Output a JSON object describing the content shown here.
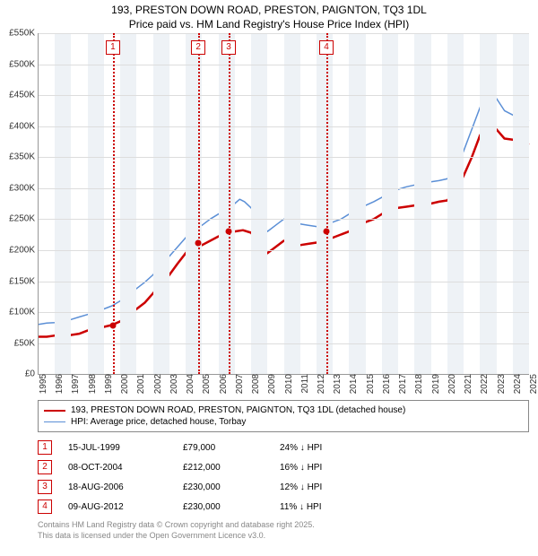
{
  "title_line1": "193, PRESTON DOWN ROAD, PRESTON, PAIGNTON, TQ3 1DL",
  "title_line2": "Price paid vs. HM Land Registry's House Price Index (HPI)",
  "chart": {
    "type": "line",
    "background_color": "#ffffff",
    "band_color": "#eef2f6",
    "grid_color": "#dddddd",
    "axis_color": "#999999",
    "marker_color": "#cc0000",
    "ylim": [
      0,
      550
    ],
    "ytick_step": 50,
    "y_unit_prefix": "£",
    "y_unit_suffix": "K",
    "x_years": [
      1995,
      1996,
      1997,
      1998,
      1999,
      2000,
      2001,
      2002,
      2003,
      2004,
      2005,
      2006,
      2007,
      2008,
      2009,
      2010,
      2011,
      2012,
      2013,
      2014,
      2015,
      2016,
      2017,
      2018,
      2019,
      2020,
      2021,
      2022,
      2023,
      2024,
      2025
    ],
    "series": [
      {
        "id": "property",
        "label": "193, PRESTON DOWN ROAD, PRESTON, PAIGNTON, TQ3 1DL (detached house)",
        "color": "#cc0000",
        "line_width": 2.5,
        "points": [
          [
            1995.0,
            60
          ],
          [
            1995.5,
            60
          ],
          [
            1996.0,
            62
          ],
          [
            1996.5,
            61
          ],
          [
            1997.0,
            63
          ],
          [
            1997.5,
            65
          ],
          [
            1998.0,
            70
          ],
          [
            1998.5,
            73
          ],
          [
            1999.0,
            76
          ],
          [
            1999.5,
            79
          ],
          [
            2000.0,
            85
          ],
          [
            2000.5,
            95
          ],
          [
            2001.0,
            105
          ],
          [
            2001.5,
            115
          ],
          [
            2002.0,
            130
          ],
          [
            2002.5,
            145
          ],
          [
            2003.0,
            160
          ],
          [
            2003.5,
            178
          ],
          [
            2004.0,
            195
          ],
          [
            2004.3,
            205
          ],
          [
            2004.5,
            200
          ],
          [
            2004.75,
            212
          ],
          [
            2005.0,
            208
          ],
          [
            2005.5,
            215
          ],
          [
            2006.0,
            222
          ],
          [
            2006.5,
            228
          ],
          [
            2007.0,
            230
          ],
          [
            2007.5,
            232
          ],
          [
            2008.0,
            228
          ],
          [
            2008.5,
            210
          ],
          [
            2009.0,
            195
          ],
          [
            2009.5,
            205
          ],
          [
            2010.0,
            215
          ],
          [
            2010.5,
            212
          ],
          [
            2011.0,
            208
          ],
          [
            2011.5,
            210
          ],
          [
            2012.0,
            212
          ],
          [
            2012.5,
            218
          ],
          [
            2013.0,
            220
          ],
          [
            2013.5,
            225
          ],
          [
            2014.0,
            230
          ],
          [
            2014.5,
            238
          ],
          [
            2015.0,
            245
          ],
          [
            2015.5,
            250
          ],
          [
            2016.0,
            258
          ],
          [
            2016.5,
            265
          ],
          [
            2017.0,
            268
          ],
          [
            2017.5,
            270
          ],
          [
            2018.0,
            272
          ],
          [
            2018.5,
            275
          ],
          [
            2019.0,
            275
          ],
          [
            2019.5,
            278
          ],
          [
            2020.0,
            280
          ],
          [
            2020.5,
            295
          ],
          [
            2021.0,
            320
          ],
          [
            2021.5,
            350
          ],
          [
            2022.0,
            385
          ],
          [
            2022.5,
            405
          ],
          [
            2023.0,
            395
          ],
          [
            2023.5,
            380
          ],
          [
            2024.0,
            378
          ],
          [
            2024.5,
            375
          ],
          [
            2025.0,
            370
          ]
        ]
      },
      {
        "id": "hpi",
        "label": "HPI: Average price, detached house, Torbay",
        "color": "#5b8fd6",
        "line_width": 1.5,
        "points": [
          [
            1995.0,
            80
          ],
          [
            1995.5,
            82
          ],
          [
            1996.0,
            83
          ],
          [
            1996.5,
            85
          ],
          [
            1997.0,
            88
          ],
          [
            1997.5,
            92
          ],
          [
            1998.0,
            96
          ],
          [
            1998.5,
            100
          ],
          [
            1999.0,
            105
          ],
          [
            1999.5,
            110
          ],
          [
            2000.0,
            118
          ],
          [
            2000.5,
            128
          ],
          [
            2001.0,
            138
          ],
          [
            2001.5,
            148
          ],
          [
            2002.0,
            160
          ],
          [
            2002.5,
            175
          ],
          [
            2003.0,
            190
          ],
          [
            2003.5,
            205
          ],
          [
            2004.0,
            220
          ],
          [
            2004.5,
            235
          ],
          [
            2005.0,
            240
          ],
          [
            2005.5,
            250
          ],
          [
            2006.0,
            258
          ],
          [
            2006.5,
            265
          ],
          [
            2007.0,
            275
          ],
          [
            2007.3,
            282
          ],
          [
            2007.6,
            278
          ],
          [
            2008.0,
            268
          ],
          [
            2008.5,
            248
          ],
          [
            2009.0,
            230
          ],
          [
            2009.5,
            240
          ],
          [
            2010.0,
            250
          ],
          [
            2010.5,
            248
          ],
          [
            2011.0,
            242
          ],
          [
            2011.5,
            240
          ],
          [
            2012.0,
            238
          ],
          [
            2012.5,
            240
          ],
          [
            2013.0,
            245
          ],
          [
            2013.5,
            250
          ],
          [
            2014.0,
            258
          ],
          [
            2014.5,
            265
          ],
          [
            2015.0,
            272
          ],
          [
            2015.5,
            278
          ],
          [
            2016.0,
            285
          ],
          [
            2016.5,
            292
          ],
          [
            2017.0,
            298
          ],
          [
            2017.5,
            302
          ],
          [
            2018.0,
            305
          ],
          [
            2018.5,
            308
          ],
          [
            2019.0,
            310
          ],
          [
            2019.5,
            312
          ],
          [
            2020.0,
            315
          ],
          [
            2020.5,
            330
          ],
          [
            2021.0,
            360
          ],
          [
            2021.5,
            395
          ],
          [
            2022.0,
            430
          ],
          [
            2022.5,
            455
          ],
          [
            2023.0,
            445
          ],
          [
            2023.5,
            425
          ],
          [
            2024.0,
            418
          ],
          [
            2024.5,
            412
          ],
          [
            2025.0,
            408
          ]
        ]
      }
    ],
    "markers": [
      {
        "n": "1",
        "x": 1999.55,
        "y": 79
      },
      {
        "n": "2",
        "x": 2004.77,
        "y": 212
      },
      {
        "n": "3",
        "x": 2006.63,
        "y": 230
      },
      {
        "n": "4",
        "x": 2012.61,
        "y": 230
      }
    ]
  },
  "legend": {
    "items": [
      {
        "series": "property"
      },
      {
        "series": "hpi"
      }
    ]
  },
  "sales": [
    {
      "n": "1",
      "date": "15-JUL-1999",
      "price": "£79,000",
      "delta": "24% ↓ HPI"
    },
    {
      "n": "2",
      "date": "08-OCT-2004",
      "price": "£212,000",
      "delta": "16% ↓ HPI"
    },
    {
      "n": "3",
      "date": "18-AUG-2006",
      "price": "£230,000",
      "delta": "12% ↓ HPI"
    },
    {
      "n": "4",
      "date": "09-AUG-2012",
      "price": "£230,000",
      "delta": "11% ↓ HPI"
    }
  ],
  "footer_line1": "Contains HM Land Registry data © Crown copyright and database right 2025.",
  "footer_line2": "This data is licensed under the Open Government Licence v3.0."
}
